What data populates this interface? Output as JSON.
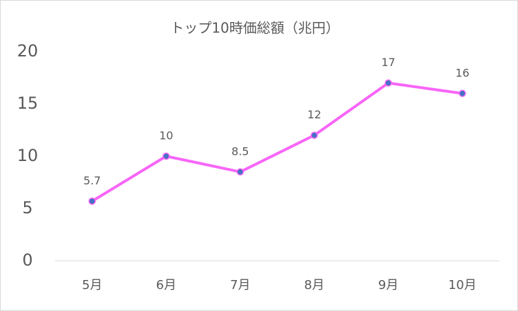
{
  "chart_data": {
    "type": "line",
    "title": "トップ10時価総額（兆円）",
    "categories": [
      "5月",
      "6月",
      "7月",
      "8月",
      "9月",
      "10月"
    ],
    "series": [
      {
        "name": "トップ10時価総額",
        "color": "#f865f8",
        "marker_color": "#4472c4",
        "values": [
          5.7,
          10,
          8.5,
          12,
          17,
          16
        ]
      }
    ],
    "ylim": [
      0,
      20
    ],
    "yticks": [
      0,
      5,
      10,
      15,
      20
    ],
    "grid": false
  }
}
